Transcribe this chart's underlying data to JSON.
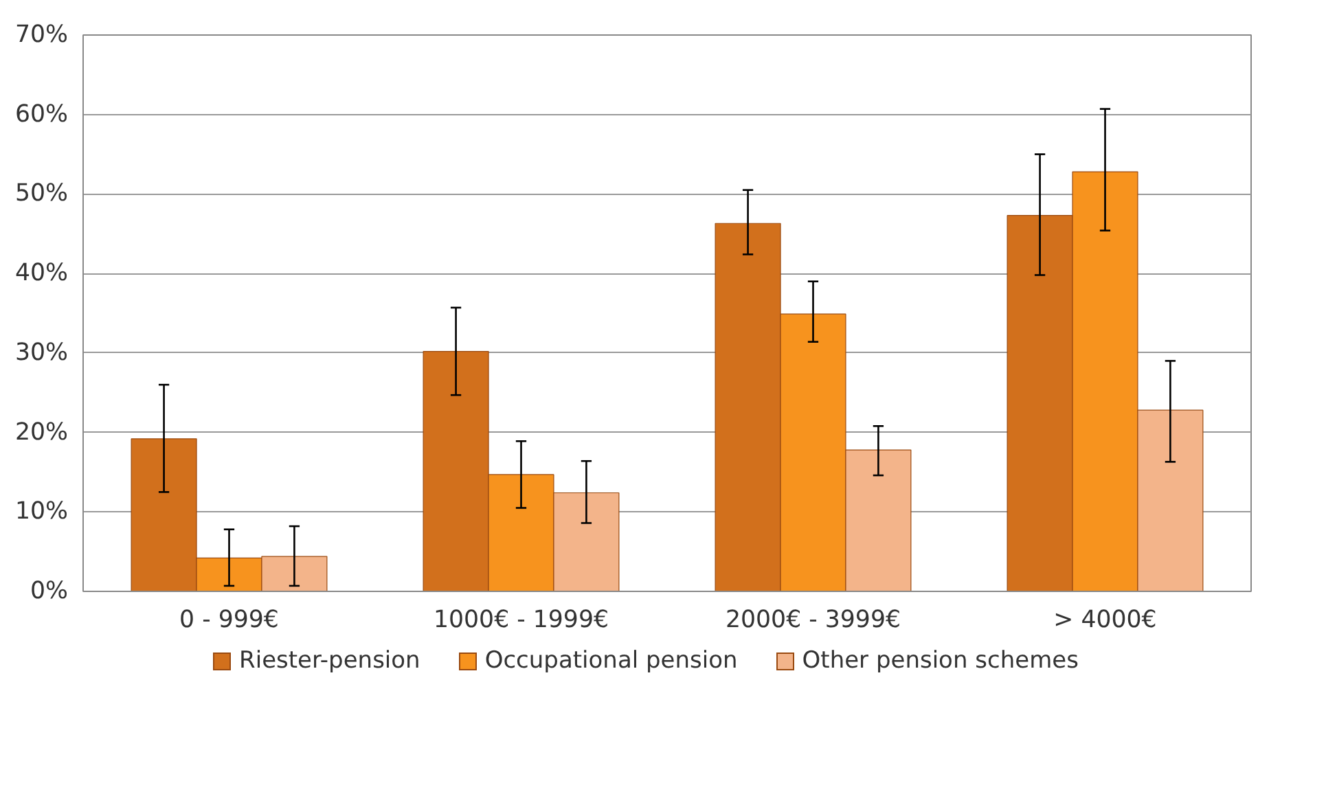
{
  "chart_data": {
    "type": "bar",
    "categories": [
      "0 - 999€",
      "1000€ - 1999€",
      "2000€ - 3999€",
      "> 4000€"
    ],
    "series": [
      {
        "name": "Riester-pension",
        "color": "#d2701c",
        "values": [
          19.2,
          30.2,
          46.3,
          47.3
        ],
        "errors": [
          [
            12.5,
            26.0
          ],
          [
            24.7,
            35.7
          ],
          [
            42.4,
            50.5
          ],
          [
            39.8,
            55.0
          ]
        ]
      },
      {
        "name": "Occupational pension",
        "color": "#f7931e",
        "values": [
          4.2,
          14.7,
          34.9,
          52.8
        ],
        "errors": [
          [
            0.7,
            7.8
          ],
          [
            10.5,
            18.9
          ],
          [
            31.4,
            39.0
          ],
          [
            45.4,
            60.7
          ]
        ]
      },
      {
        "name": "Other pension schemes",
        "color": "#f3b48a",
        "values": [
          4.4,
          12.4,
          17.8,
          22.8
        ],
        "errors": [
          [
            0.7,
            8.2
          ],
          [
            8.6,
            16.4
          ],
          [
            14.6,
            20.8
          ],
          [
            16.3,
            29.0
          ]
        ]
      }
    ],
    "ylim": [
      0,
      70
    ],
    "yticks": [
      {
        "value": 0,
        "label": "0%"
      },
      {
        "value": 10,
        "label": "10%"
      },
      {
        "value": 20,
        "label": "20%"
      },
      {
        "value": 30,
        "label": "30%"
      },
      {
        "value": 40,
        "label": "40%"
      },
      {
        "value": 50,
        "label": "50%"
      },
      {
        "value": 60,
        "label": "60%"
      },
      {
        "value": 70,
        "label": "70%"
      }
    ],
    "grid": "y",
    "legend": "bottom"
  }
}
